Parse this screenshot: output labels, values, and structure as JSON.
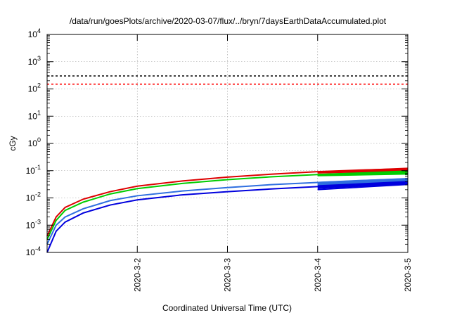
{
  "chart_data": {
    "type": "line",
    "title": "/data/run/goesPlots/archive/2020-03-07/flux/../bryn/7daysEarthDataAccumulated.plot",
    "xlabel": "Coordinated Universal Time (UTC)",
    "ylabel": "cGy",
    "y_scale": "log",
    "ylim": [
      0.0001,
      10000
    ],
    "xlim": [
      "2020-03-01",
      "2020-03-05"
    ],
    "x_ticks": [
      "2020-03-02",
      "2020-03-03",
      "2020-03-04",
      "2020-03-05"
    ],
    "x_tick_labels": [
      "2020-3-2",
      "2020-3-3",
      "2020-3-4",
      "2020-3-5"
    ],
    "y_ticks": [
      {
        "value": 0.0001,
        "base": "10",
        "exp": "-4"
      },
      {
        "value": 0.001,
        "base": "10",
        "exp": "-3"
      },
      {
        "value": 0.01,
        "base": "10",
        "exp": "-2"
      },
      {
        "value": 0.1,
        "base": "10",
        "exp": "-1"
      },
      {
        "value": 1,
        "base": "10",
        "exp": "0"
      },
      {
        "value": 10,
        "base": "10",
        "exp": "1"
      },
      {
        "value": 100,
        "base": "10",
        "exp": "2"
      },
      {
        "value": 1000,
        "base": "10",
        "exp": "3"
      },
      {
        "value": 10000,
        "base": "10",
        "exp": "4"
      }
    ],
    "grid": true,
    "thresholds": [
      {
        "value": 300,
        "color": "#000000",
        "style": "dashed"
      },
      {
        "value": 150,
        "color": "#ff0000",
        "style": "dashed"
      }
    ],
    "series": [
      {
        "color": "#dd0000",
        "x": [
          "2020-03-01T00:00",
          "2020-03-01T02:24",
          "2020-03-01T04:48",
          "2020-03-01T09:36",
          "2020-03-01T16:48",
          "2020-03-02T00:00",
          "2020-03-02T12:00",
          "2020-03-03T00:00",
          "2020-03-03T12:00",
          "2020-03-04T00:00",
          "2020-03-04T12:00",
          "2020-03-05T00:00"
        ],
        "y": [
          0.0004,
          0.002,
          0.0045,
          0.009,
          0.017,
          0.027,
          0.042,
          0.058,
          0.075,
          0.092,
          0.106,
          0.118
        ]
      },
      {
        "color": "#00cc00",
        "x": [
          "2020-03-01T00:00",
          "2020-03-01T02:24",
          "2020-03-01T04:48",
          "2020-03-01T09:36",
          "2020-03-01T16:48",
          "2020-03-02T00:00",
          "2020-03-02T12:00",
          "2020-03-03T00:00",
          "2020-03-03T12:00",
          "2020-03-04T00:00",
          "2020-03-04T12:00",
          "2020-03-05T00:00"
        ],
        "y": [
          0.0003,
          0.0015,
          0.0035,
          0.007,
          0.014,
          0.022,
          0.034,
          0.047,
          0.06,
          0.072,
          0.084,
          0.095
        ]
      },
      {
        "color": "#2f6fe0",
        "x": [
          "2020-03-01T00:00",
          "2020-03-01T02:24",
          "2020-03-01T04:48",
          "2020-03-01T09:36",
          "2020-03-01T16:48",
          "2020-03-02T00:00",
          "2020-03-02T12:00",
          "2020-03-03T00:00",
          "2020-03-03T12:00",
          "2020-03-04T00:00",
          "2020-03-04T12:00",
          "2020-03-05T00:00"
        ],
        "y": [
          0.0002,
          0.001,
          0.002,
          0.004,
          0.008,
          0.012,
          0.018,
          0.024,
          0.031,
          0.037,
          0.044,
          0.05
        ]
      },
      {
        "color": "#0000dd",
        "x": [
          "2020-03-01T00:00",
          "2020-03-01T02:24",
          "2020-03-01T04:48",
          "2020-03-01T09:36",
          "2020-03-01T16:48",
          "2020-03-02T00:00",
          "2020-03-02T12:00",
          "2020-03-03T00:00",
          "2020-03-03T12:00",
          "2020-03-04T00:00",
          "2020-03-04T12:00",
          "2020-03-05T00:00"
        ],
        "y": [
          0.0001,
          0.0006,
          0.0013,
          0.0028,
          0.0055,
          0.0085,
          0.013,
          0.017,
          0.0215,
          0.026,
          0.03,
          0.034
        ]
      }
    ],
    "fan_series": [
      {
        "color": "#dd0000",
        "x": [
          "2020-03-04T00:00",
          "2020-03-05T00:00"
        ],
        "y": [
          [
            0.09,
            0.124
          ],
          [
            0.088,
            0.118
          ],
          [
            0.086,
            0.112
          ],
          [
            0.084,
            0.106
          ],
          [
            0.082,
            0.1
          ]
        ]
      },
      {
        "color": "#00cc00",
        "x": [
          "2020-03-04T00:00",
          "2020-03-05T00:00"
        ],
        "y": [
          [
            0.072,
            0.098
          ],
          [
            0.07,
            0.092
          ],
          [
            0.068,
            0.086
          ],
          [
            0.066,
            0.08
          ],
          [
            0.065,
            0.075
          ]
        ]
      },
      {
        "color": "#2f6fe0",
        "x": [
          "2020-03-04T00:00",
          "2020-03-05T00:00"
        ],
        "y": [
          [
            0.037,
            0.052
          ],
          [
            0.035,
            0.048
          ],
          [
            0.033,
            0.045
          ],
          [
            0.031,
            0.042
          ],
          [
            0.029,
            0.039
          ]
        ]
      },
      {
        "color": "#0000dd",
        "x": [
          "2020-03-04T00:00",
          "2020-03-05T00:00"
        ],
        "y": [
          [
            0.028,
            0.04
          ],
          [
            0.026,
            0.037
          ],
          [
            0.024,
            0.035
          ],
          [
            0.022,
            0.033
          ],
          [
            0.02,
            0.031
          ]
        ]
      }
    ]
  }
}
